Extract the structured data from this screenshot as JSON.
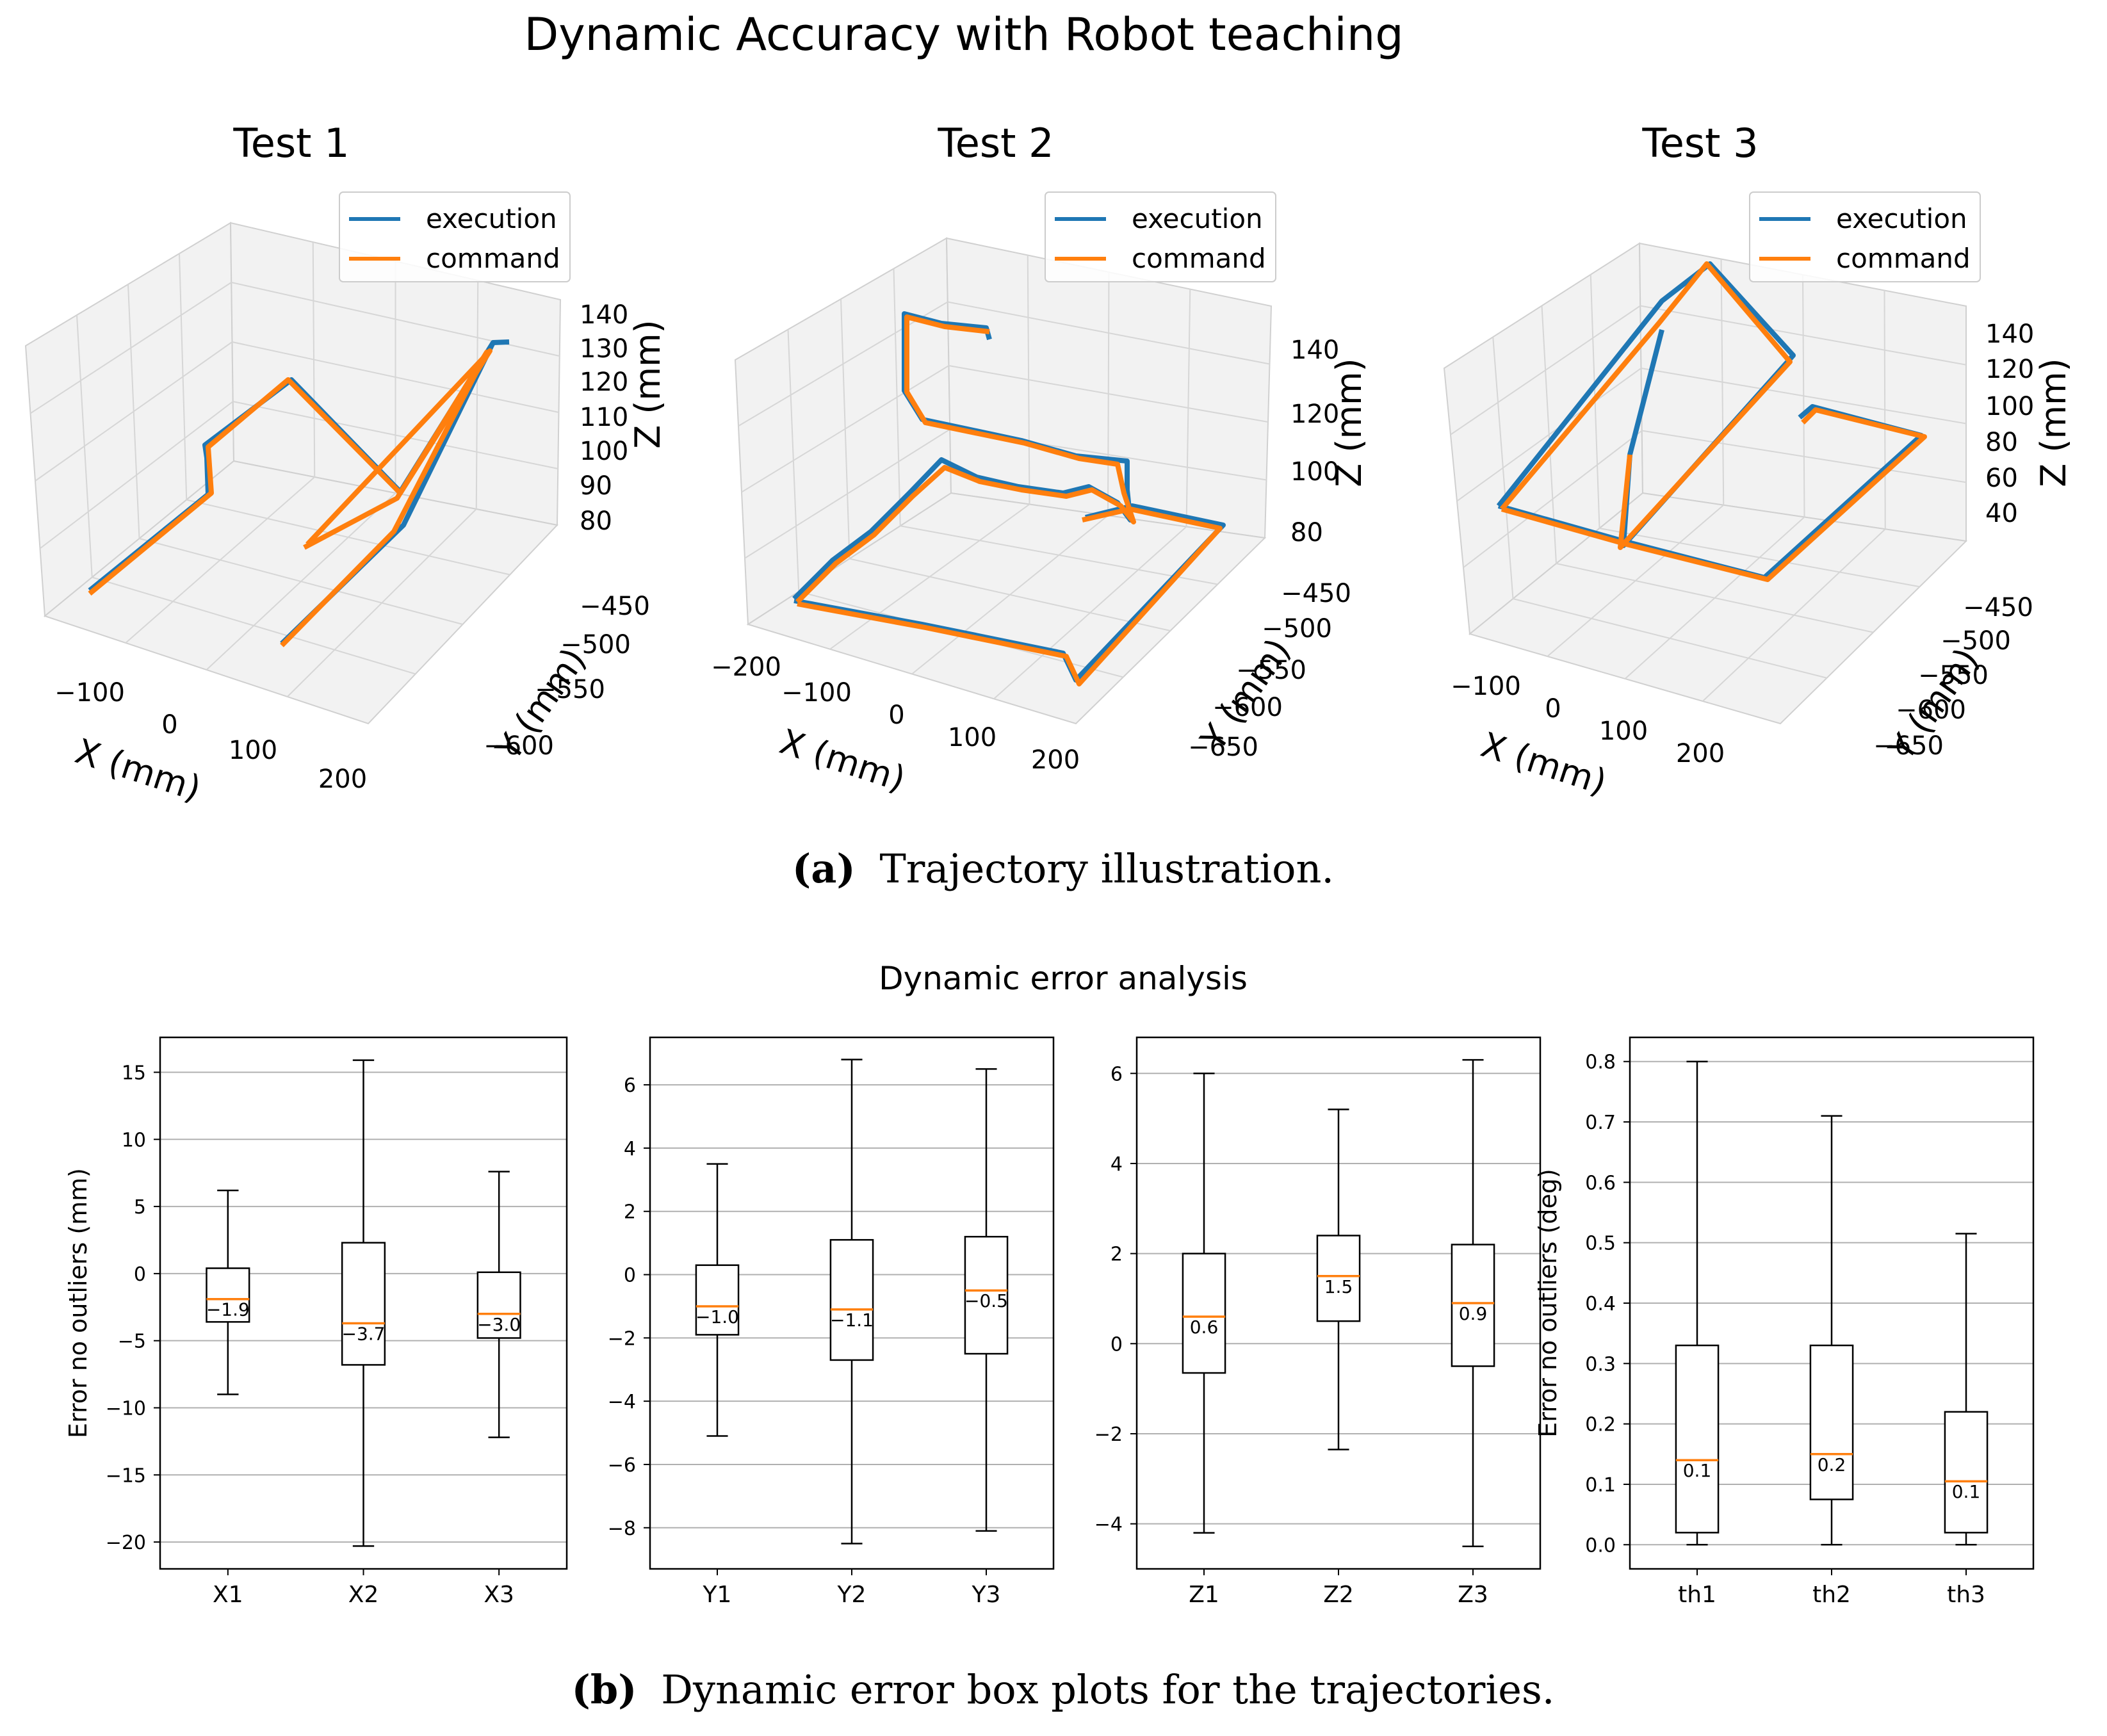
{
  "figure": {
    "title": "Dynamic Accuracy with Robot teaching",
    "caption_a_label": "(a)",
    "caption_a_text": "Trajectory illustration.",
    "caption_b_label": "(b)",
    "caption_b_text": "Dynamic error box plots for the trajectories.",
    "subtitle_b": "Dynamic error analysis"
  },
  "colors": {
    "execution": "#1f77b4",
    "command": "#ff7f0e",
    "grid": "#b0b0b0",
    "pane": "#f2f2f2"
  },
  "legend": {
    "execution": "execution",
    "command": "command"
  },
  "chart_data": [
    {
      "type": "line3d",
      "title": "Test 1",
      "xlabel": "X (mm)",
      "ylabel": "Y (mm)",
      "zlabel": "Z (mm)",
      "xticks": [
        "−100",
        "0",
        "100",
        "200"
      ],
      "yticks": [
        "−450",
        "−500",
        "−550",
        "−600"
      ],
      "zticks": [
        "140",
        "130",
        "120",
        "110",
        "100",
        "90",
        "80"
      ],
      "series": [
        {
          "name": "execution"
        },
        {
          "name": "command"
        }
      ]
    },
    {
      "type": "line3d",
      "title": "Test 2",
      "xlabel": "X (mm)",
      "ylabel": "Y (mm)",
      "zlabel": "Z (mm)",
      "xticks": [
        "−200",
        "−100",
        "0",
        "100",
        "200"
      ],
      "yticks": [
        "−450",
        "−500",
        "−550",
        "−600",
        "−650"
      ],
      "zticks": [
        "140",
        "120",
        "100",
        "80"
      ],
      "series": [
        {
          "name": "execution"
        },
        {
          "name": "command"
        }
      ]
    },
    {
      "type": "line3d",
      "title": "Test 3",
      "xlabel": "X (mm)",
      "ylabel": "Y (mm)",
      "zlabel": "Z (mm)",
      "xticks": [
        "−100",
        "0",
        "100",
        "200"
      ],
      "yticks": [
        "−450",
        "−500",
        "−550",
        "−600",
        "−650"
      ],
      "zticks": [
        "140",
        "120",
        "100",
        "80",
        "60",
        "40"
      ],
      "series": [
        {
          "name": "execution"
        },
        {
          "name": "command"
        }
      ]
    },
    {
      "type": "box",
      "ylabel": "Error no outliers (mm)",
      "ylim": [
        -22,
        17.6
      ],
      "yticks": [
        15,
        10,
        5,
        0,
        -5,
        -10,
        -15,
        -20
      ],
      "boxes": [
        {
          "label": "X1",
          "whislo": -9.0,
          "q1": -3.6,
          "med": -1.9,
          "q3": 0.4,
          "whishi": 6.2,
          "annot": "−1.9"
        },
        {
          "label": "X2",
          "whislo": -20.3,
          "q1": -6.8,
          "med": -3.7,
          "q3": 2.3,
          "whishi": 15.9,
          "annot": "−3.7"
        },
        {
          "label": "X3",
          "whislo": -12.2,
          "q1": -4.8,
          "med": -3.0,
          "q3": 0.1,
          "whishi": 7.6,
          "annot": "−3.0"
        }
      ]
    },
    {
      "type": "box",
      "ylabel": "",
      "ylim": [
        -9.3,
        7.5
      ],
      "yticks": [
        6,
        4,
        2,
        0,
        -2,
        -4,
        -6,
        -8
      ],
      "boxes": [
        {
          "label": "Y1",
          "whislo": -5.1,
          "q1": -1.9,
          "med": -1.0,
          "q3": 0.3,
          "whishi": 3.5,
          "annot": "−1.0"
        },
        {
          "label": "Y2",
          "whislo": -8.5,
          "q1": -2.7,
          "med": -1.1,
          "q3": 1.1,
          "whishi": 6.8,
          "annot": "−1.1"
        },
        {
          "label": "Y3",
          "whislo": -8.1,
          "q1": -2.5,
          "med": -0.5,
          "q3": 1.2,
          "whishi": 6.5,
          "annot": "−0.5"
        }
      ]
    },
    {
      "type": "box",
      "ylabel": "",
      "ylim": [
        -5.0,
        6.8
      ],
      "yticks": [
        6,
        4,
        2,
        0,
        -2,
        -4
      ],
      "boxes": [
        {
          "label": "Z1",
          "whislo": -4.2,
          "q1": -0.65,
          "med": 0.6,
          "q3": 2.0,
          "whishi": 6.0,
          "annot": "0.6"
        },
        {
          "label": "Z2",
          "whislo": -2.35,
          "q1": 0.5,
          "med": 1.5,
          "q3": 2.4,
          "whishi": 5.2,
          "annot": "1.5"
        },
        {
          "label": "Z3",
          "whislo": -4.5,
          "q1": -0.5,
          "med": 0.9,
          "q3": 2.2,
          "whishi": 6.3,
          "annot": "0.9"
        }
      ]
    },
    {
      "type": "box",
      "ylabel": "Error no outliers (deg)",
      "ylim": [
        -0.04,
        0.84
      ],
      "yticks": [
        0.8,
        0.7,
        0.6,
        0.5,
        0.4,
        0.3,
        0.2,
        0.1,
        0.0
      ],
      "ytick_labels": [
        "0.8",
        "0.7",
        "0.6",
        "0.5",
        "0.4",
        "0.3",
        "0.2",
        "0.1",
        "0.0"
      ],
      "boxes": [
        {
          "label": "th1",
          "whislo": 0.0,
          "q1": 0.02,
          "med": 0.14,
          "q3": 0.33,
          "whishi": 0.8,
          "annot": "0.1"
        },
        {
          "label": "th2",
          "whislo": 0.0,
          "q1": 0.075,
          "med": 0.15,
          "q3": 0.33,
          "whishi": 0.71,
          "annot": "0.2"
        },
        {
          "label": "th3",
          "whislo": 0.0,
          "q1": 0.02,
          "med": 0.105,
          "q3": 0.22,
          "whishi": 0.515,
          "annot": "0.1"
        }
      ]
    }
  ]
}
